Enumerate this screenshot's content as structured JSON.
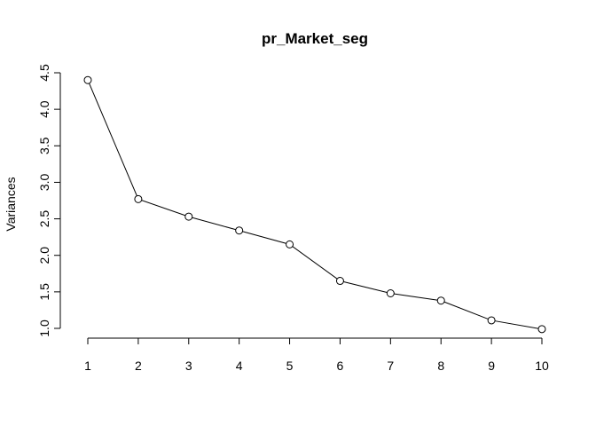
{
  "chart_data": {
    "type": "line",
    "title": "pr_Market_seg",
    "xlabel": "",
    "ylabel": "Variances",
    "x": [
      1,
      2,
      3,
      4,
      5,
      6,
      7,
      8,
      9,
      10
    ],
    "x_ticks": [
      "1",
      "2",
      "3",
      "4",
      "5",
      "6",
      "7",
      "8",
      "9",
      "10"
    ],
    "y_ticks": [
      "1.0",
      "1.5",
      "2.0",
      "2.5",
      "3.0",
      "3.5",
      "4.0",
      "4.5"
    ],
    "ylim": [
      1.0,
      4.5
    ],
    "xlim": [
      1,
      10
    ],
    "grid": false,
    "marker": "open-circle",
    "series": [
      {
        "values": [
          4.4,
          2.77,
          2.53,
          2.34,
          2.15,
          1.65,
          1.48,
          1.38,
          1.11,
          0.99
        ]
      }
    ]
  }
}
